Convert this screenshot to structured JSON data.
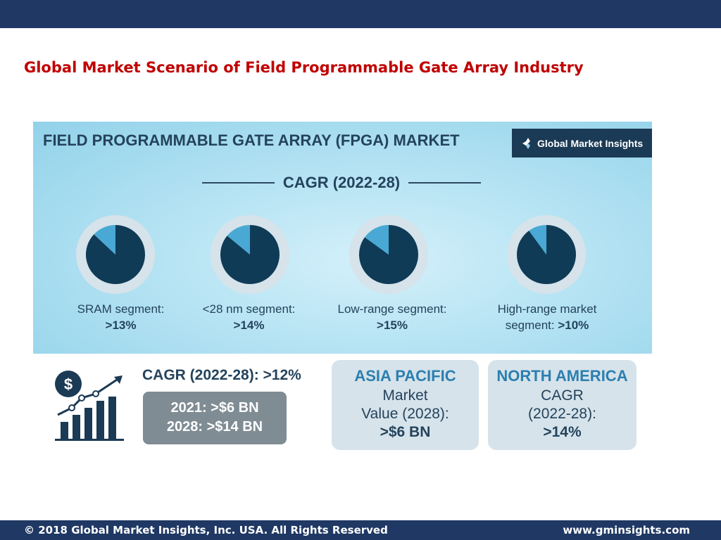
{
  "slide": {
    "title": "Global Market Scenario of Field Programmable Gate Array Industry",
    "colors": {
      "bar": "#1f3864",
      "title": "#c00000"
    }
  },
  "infographic": {
    "heading": "FIELD PROGRAMMABLE GATE ARRAY (FPGA) MARKET",
    "logo_text": "Global Market Insights",
    "logo_icon": "gmi-logo-icon",
    "cagr_heading": "CAGR (2022-28)"
  },
  "chart_data": {
    "type": "pie",
    "title": "CAGR (2022-28)",
    "colors": {
      "dark": "#0f3b57",
      "light": "#49a9d4",
      "ring": "#d6e3ea"
    },
    "pies": [
      {
        "label": "SRAM segment:",
        "value_text": ">13%",
        "slice_pct": 13
      },
      {
        "label": "<28 nm segment:",
        "value_text": ">14%",
        "slice_pct": 14
      },
      {
        "label": "Low-range segment:",
        "value_text": ">15%",
        "slice_pct": 15
      },
      {
        "label": "High-range market",
        "label2": "segment: ",
        "value_text": ">10%",
        "slice_pct": 10
      }
    ]
  },
  "summary": {
    "icon": "market-growth-chart-icon",
    "cagr": "CAGR (2022-28): >12%",
    "value_2021": "2021: >$6 BN",
    "value_2028": "2028: >$14 BN"
  },
  "regions": [
    {
      "name": "ASIA PACIFIC",
      "line1": "Market",
      "line2": "Value (2028):",
      "value": ">$6 BN"
    },
    {
      "name": "NORTH AMERICA",
      "line1": "CAGR",
      "line2": "(2022-28):",
      "value": ">14%"
    }
  ],
  "footer": {
    "copyright": "© 2018 Global Market Insights, Inc. USA. All Rights Reserved",
    "url": "www.gminsights.com"
  }
}
